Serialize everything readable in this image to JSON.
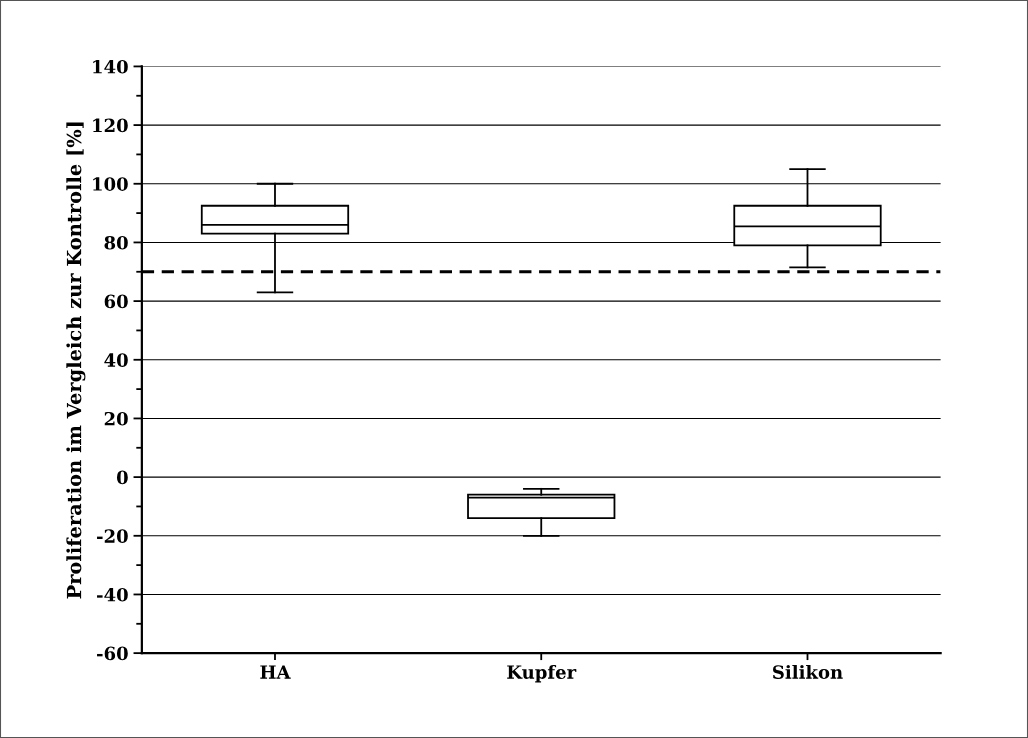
{
  "chart_data": {
    "type": "box",
    "ylabel": "Proliferation im Vergleich zur Kontrolle [%]",
    "categories": [
      "HA",
      "Kupfer",
      "Silikon"
    ],
    "boxes": [
      {
        "low": 63,
        "q1": 83,
        "median": 86,
        "q3": 92.5,
        "high": 100
      },
      {
        "low": -20,
        "q1": -14,
        "median": -7,
        "q3": -6,
        "high": -4
      },
      {
        "low": 71.5,
        "q1": 79,
        "median": 85.5,
        "q3": 92.5,
        "high": 105
      }
    ],
    "ylim": [
      -60,
      140
    ],
    "yticks": [
      -60,
      -40,
      -20,
      0,
      20,
      40,
      60,
      80,
      100,
      120,
      140
    ],
    "grid": "y",
    "ref_lines": [
      {
        "axis": "y",
        "value": 70,
        "line_style": "dashed",
        "color": "#000000"
      }
    ]
  }
}
